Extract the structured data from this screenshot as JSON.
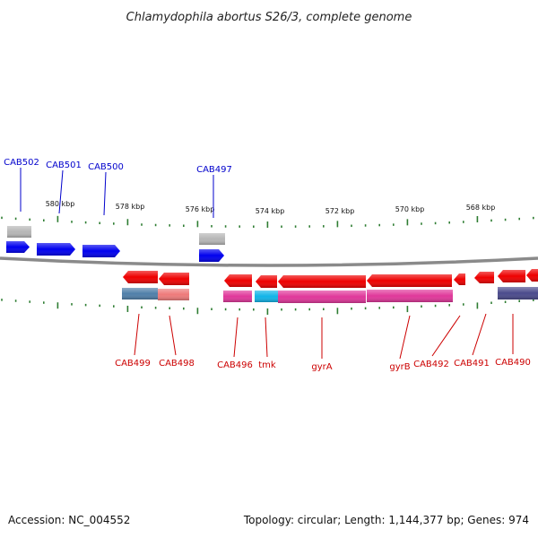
{
  "title": "Chlamydophila abortus S26/3, complete genome",
  "footer": {
    "accession": "Accession: NC_004552",
    "summary": "Topology: circular; Length: 1,144,377 bp; Genes: 974"
  },
  "colors": {
    "forward_label": "#0000cc",
    "reverse_label": "#cc0000",
    "forward_arrow": "#0000ee",
    "reverse_arrow": "#ee0000",
    "backbone": "#888888",
    "tick": "#2e7d32",
    "gray_feature": "#b4b4b4",
    "steelblue_feature": "#4f7fa9",
    "salmon_feature": "#ee7a7a",
    "pink_feature": "#e0379a",
    "cyan_feature": "#11b4e8",
    "indigo_feature": "#4a4a8c"
  },
  "scale_labels": [
    "580 kbp",
    "578 kbp",
    "576 kbp",
    "574 kbp",
    "572 kbp",
    "570 kbp",
    "568 kbp"
  ],
  "forward_genes": [
    "CAB502",
    "CAB501",
    "CAB500",
    "CAB497"
  ],
  "reverse_genes": [
    "CAB499",
    "CAB498",
    "CAB496",
    "tmk",
    "gyrA",
    "gyrB",
    "CAB492",
    "CAB491",
    "CAB490"
  ]
}
